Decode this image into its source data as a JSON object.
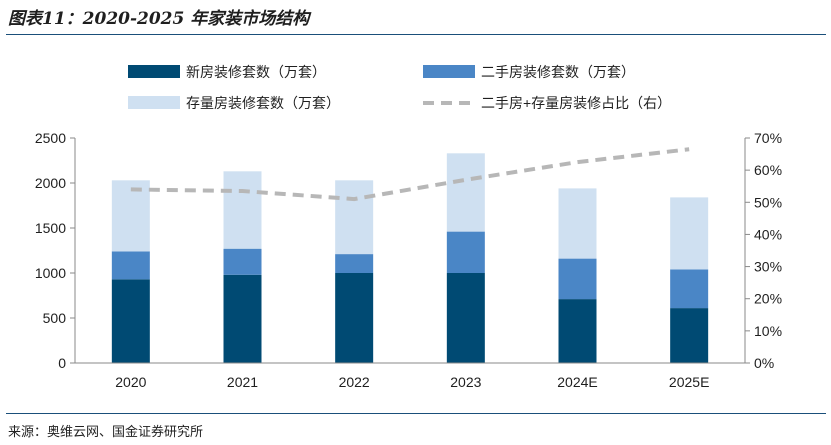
{
  "figure": {
    "title": "图表11：2020-2025 年家装市场结构",
    "source": "来源：奥维云网、国金证券研究所"
  },
  "colors": {
    "new_house": "#004a73",
    "second_hand": "#4a86c6",
    "stock": "#cfe0f1",
    "ratio_line": "#b7b7b7",
    "rule": "#1a4f7a"
  },
  "chart_data": {
    "type": "bar",
    "stacked": true,
    "categories": [
      "2020",
      "2021",
      "2022",
      "2023",
      "2024E",
      "2025E"
    ],
    "series": [
      {
        "name": "新房装修套数（万套）",
        "key": "new_house",
        "values": [
          930,
          980,
          1000,
          1000,
          710,
          610
        ]
      },
      {
        "name": "二手房装修套数（万套）",
        "key": "second_hand",
        "values": [
          310,
          290,
          210,
          460,
          450,
          430
        ]
      },
      {
        "name": "存量房装修套数（万套）",
        "key": "stock",
        "values": [
          790,
          860,
          820,
          870,
          780,
          800
        ]
      }
    ],
    "line_series": {
      "name": "二手房+存量房装修占比（右）",
      "axis": "right",
      "style": "dashed",
      "values": [
        0.54,
        0.535,
        0.51,
        0.57,
        0.625,
        0.665
      ]
    },
    "y_left": {
      "min": 0,
      "max": 2500,
      "ticks": [
        "0",
        "500",
        "1000",
        "1500",
        "2000",
        "2500"
      ]
    },
    "y_right": {
      "min": 0,
      "max": 0.7,
      "ticks": [
        "0%",
        "10%",
        "20%",
        "30%",
        "40%",
        "50%",
        "60%",
        "70%"
      ]
    },
    "legend_position": "top",
    "grid": false
  }
}
